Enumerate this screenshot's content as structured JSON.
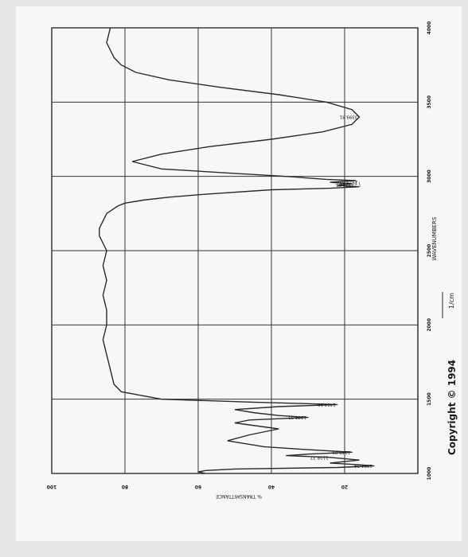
{
  "chart_data": {
    "type": "line",
    "title": "",
    "xlabel": "WAVENUMBERS",
    "ylabel": "% TRANSMITTANCE",
    "x_ticks": [
      4000,
      3500,
      3000,
      2500,
      2000,
      1500,
      1000
    ],
    "y_ticks": [
      100,
      80,
      60,
      40,
      20
    ],
    "xlim": [
      4000,
      1000
    ],
    "ylim": [
      0,
      100
    ],
    "grid": true,
    "peak_labels": [
      "3399.81",
      "2972.85",
      "2929.87",
      "1464.19",
      "1377.35",
      "1108.37",
      "1143.09",
      "1051.34"
    ],
    "spectrum": {
      "x": [
        4000,
        3900,
        3850,
        3800,
        3750,
        3700,
        3650,
        3600,
        3550,
        3500,
        3450,
        3400,
        3350,
        3300,
        3250,
        3200,
        3150,
        3100,
        3050,
        3020,
        3000,
        2980,
        2972,
        2960,
        2950,
        2940,
        2930,
        2920,
        2910,
        2880,
        2860,
        2840,
        2820,
        2800,
        2750,
        2700,
        2650,
        2600,
        2550,
        2500,
        2400,
        2300,
        2200,
        2100,
        2000,
        1900,
        1800,
        1700,
        1600,
        1550,
        1500,
        1480,
        1464,
        1450,
        1430,
        1410,
        1390,
        1377,
        1360,
        1340,
        1300,
        1260,
        1220,
        1180,
        1160,
        1143,
        1130,
        1120,
        1108,
        1090,
        1070,
        1060,
        1051,
        1040,
        1030,
        1020,
        1010,
        1000
      ],
      "y": [
        84,
        85,
        84,
        83,
        81,
        77,
        68,
        54,
        38,
        25,
        18,
        16,
        18,
        26,
        40,
        57,
        70,
        78,
        70,
        50,
        36,
        25,
        17,
        24,
        18,
        22,
        16,
        24,
        40,
        58,
        68,
        75,
        80,
        82,
        85,
        86,
        87,
        87,
        86,
        85,
        86,
        85,
        86,
        85,
        85,
        86,
        85,
        84,
        83,
        81,
        70,
        45,
        22,
        38,
        50,
        45,
        38,
        30,
        46,
        50,
        38,
        46,
        52,
        42,
        30,
        18,
        30,
        36,
        24,
        16,
        24,
        17,
        12,
        22,
        50,
        58,
        60,
        58
      ]
    }
  },
  "copyright": "Copyright © 1994",
  "units_mark": "1/cm"
}
